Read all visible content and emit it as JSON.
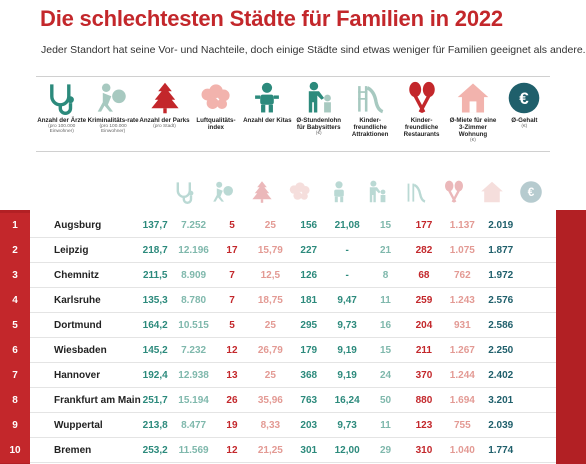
{
  "title": "Die schlechtesten Städte für Familien in 2022",
  "subtitle": "Jeder Standort hat seine Vor- und Nachteile, doch einige Städte sind etwas weniger für Familien geeignet als andere.",
  "colors": {
    "accent_red": "#c3272b",
    "teal": "#2c8a7c",
    "pink": "#f2b3ad",
    "navy": "#1f5f6b"
  },
  "columns": [
    {
      "icon": "stethoscope-icon",
      "label": "Anzahl der Ärzte",
      "sub": "(pro 100.000 Einwohner)"
    },
    {
      "icon": "burglar-icon",
      "label": "Kriminalitäts-rate",
      "sub": "(pro 100.000 Einwohner)"
    },
    {
      "icon": "tree-icon",
      "label": "Anzahl der Parks",
      "sub": "(pro Stadt)"
    },
    {
      "icon": "cloud-icon",
      "label": "Luftqualitäts-index",
      "sub": ""
    },
    {
      "icon": "baby-icon",
      "label": "Anzahl der Kitas",
      "sub": ""
    },
    {
      "icon": "babysitter-icon",
      "label": "Ø-Stundenlohn für Babysitters",
      "sub": "(€)"
    },
    {
      "icon": "slide-icon",
      "label": "Kinder-freundliche Attraktionen",
      "sub": ""
    },
    {
      "icon": "spoons-icon",
      "label": "Kinder-freundliche Restaurants",
      "sub": ""
    },
    {
      "icon": "house-icon",
      "label": "Ø-Miete für eine 3-Zimmer Wohnung",
      "sub": "(€)"
    },
    {
      "icon": "euro-icon",
      "label": "Ø-Gehalt",
      "sub": "(€)"
    }
  ],
  "rows": [
    {
      "rank": "1",
      "city": "Augsburg",
      "v": [
        "137,7",
        "7.252",
        "5",
        "25",
        "156",
        "21,08",
        "15",
        "177",
        "1.137",
        "2.019"
      ]
    },
    {
      "rank": "2",
      "city": "Leipzig",
      "v": [
        "218,7",
        "12.196",
        "17",
        "15,79",
        "227",
        "-",
        "21",
        "282",
        "1.075",
        "1.877"
      ]
    },
    {
      "rank": "3",
      "city": "Chemnitz",
      "v": [
        "211,5",
        "8.909",
        "7",
        "12,5",
        "126",
        "-",
        "8",
        "68",
        "762",
        "1.972"
      ]
    },
    {
      "rank": "4",
      "city": "Karlsruhe",
      "v": [
        "135,3",
        "8.780",
        "7",
        "18,75",
        "181",
        "9,47",
        "11",
        "259",
        "1.243",
        "2.576"
      ]
    },
    {
      "rank": "5",
      "city": "Dortmund",
      "v": [
        "164,2",
        "10.515",
        "5",
        "25",
        "295",
        "9,73",
        "16",
        "204",
        "931",
        "2.586"
      ]
    },
    {
      "rank": "6",
      "city": "Wiesbaden",
      "v": [
        "145,2",
        "7.232",
        "12",
        "26,79",
        "179",
        "9,19",
        "15",
        "211",
        "1.267",
        "2.250"
      ]
    },
    {
      "rank": "7",
      "city": "Hannover",
      "v": [
        "192,4",
        "12.938",
        "13",
        "25",
        "368",
        "9,19",
        "24",
        "370",
        "1.244",
        "2.402"
      ]
    },
    {
      "rank": "8",
      "city": "Frankfurt am Main",
      "v": [
        "251,7",
        "15.194",
        "26",
        "35,96",
        "763",
        "16,24",
        "50",
        "880",
        "1.694",
        "3.201"
      ]
    },
    {
      "rank": "9",
      "city": "Wuppertal",
      "v": [
        "213,8",
        "8.477",
        "19",
        "8,33",
        "203",
        "9,73",
        "11",
        "123",
        "755",
        "2.039"
      ]
    },
    {
      "rank": "10",
      "city": "Bremen",
      "v": [
        "253,2",
        "11.569",
        "12",
        "21,25",
        "301",
        "12,00",
        "29",
        "310",
        "1.040",
        "1.774"
      ]
    }
  ]
}
